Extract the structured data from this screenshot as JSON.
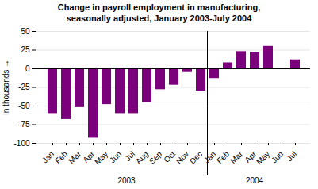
{
  "chart_data": {
    "type": "bar",
    "title": "Change in payroll employment in manufacturing,\nseasonally adjusted, January 2003-July 2004",
    "categories": [
      "Jan",
      "Feb",
      "Mar",
      "Apr",
      "May",
      "Jun",
      "Jul",
      "Aug",
      "Sep",
      "Oct",
      "Nov",
      "Dec",
      "Jan",
      "Feb",
      "Mar",
      "Apr",
      "May",
      "Jun",
      "Jul"
    ],
    "values": [
      -60,
      -68,
      -52,
      -93,
      -48,
      -60,
      -60,
      -45,
      -28,
      -22,
      -5,
      -30,
      -13,
      8,
      23,
      22,
      30,
      0,
      12
    ],
    "color": "#7b007b",
    "ylabel": "In thousands",
    "ylim": [
      -100,
      50
    ],
    "yticks": [
      -100,
      -75,
      -50,
      -25,
      0,
      25,
      50
    ],
    "grid": true,
    "annotations": [
      "2003",
      "2004"
    ]
  }
}
